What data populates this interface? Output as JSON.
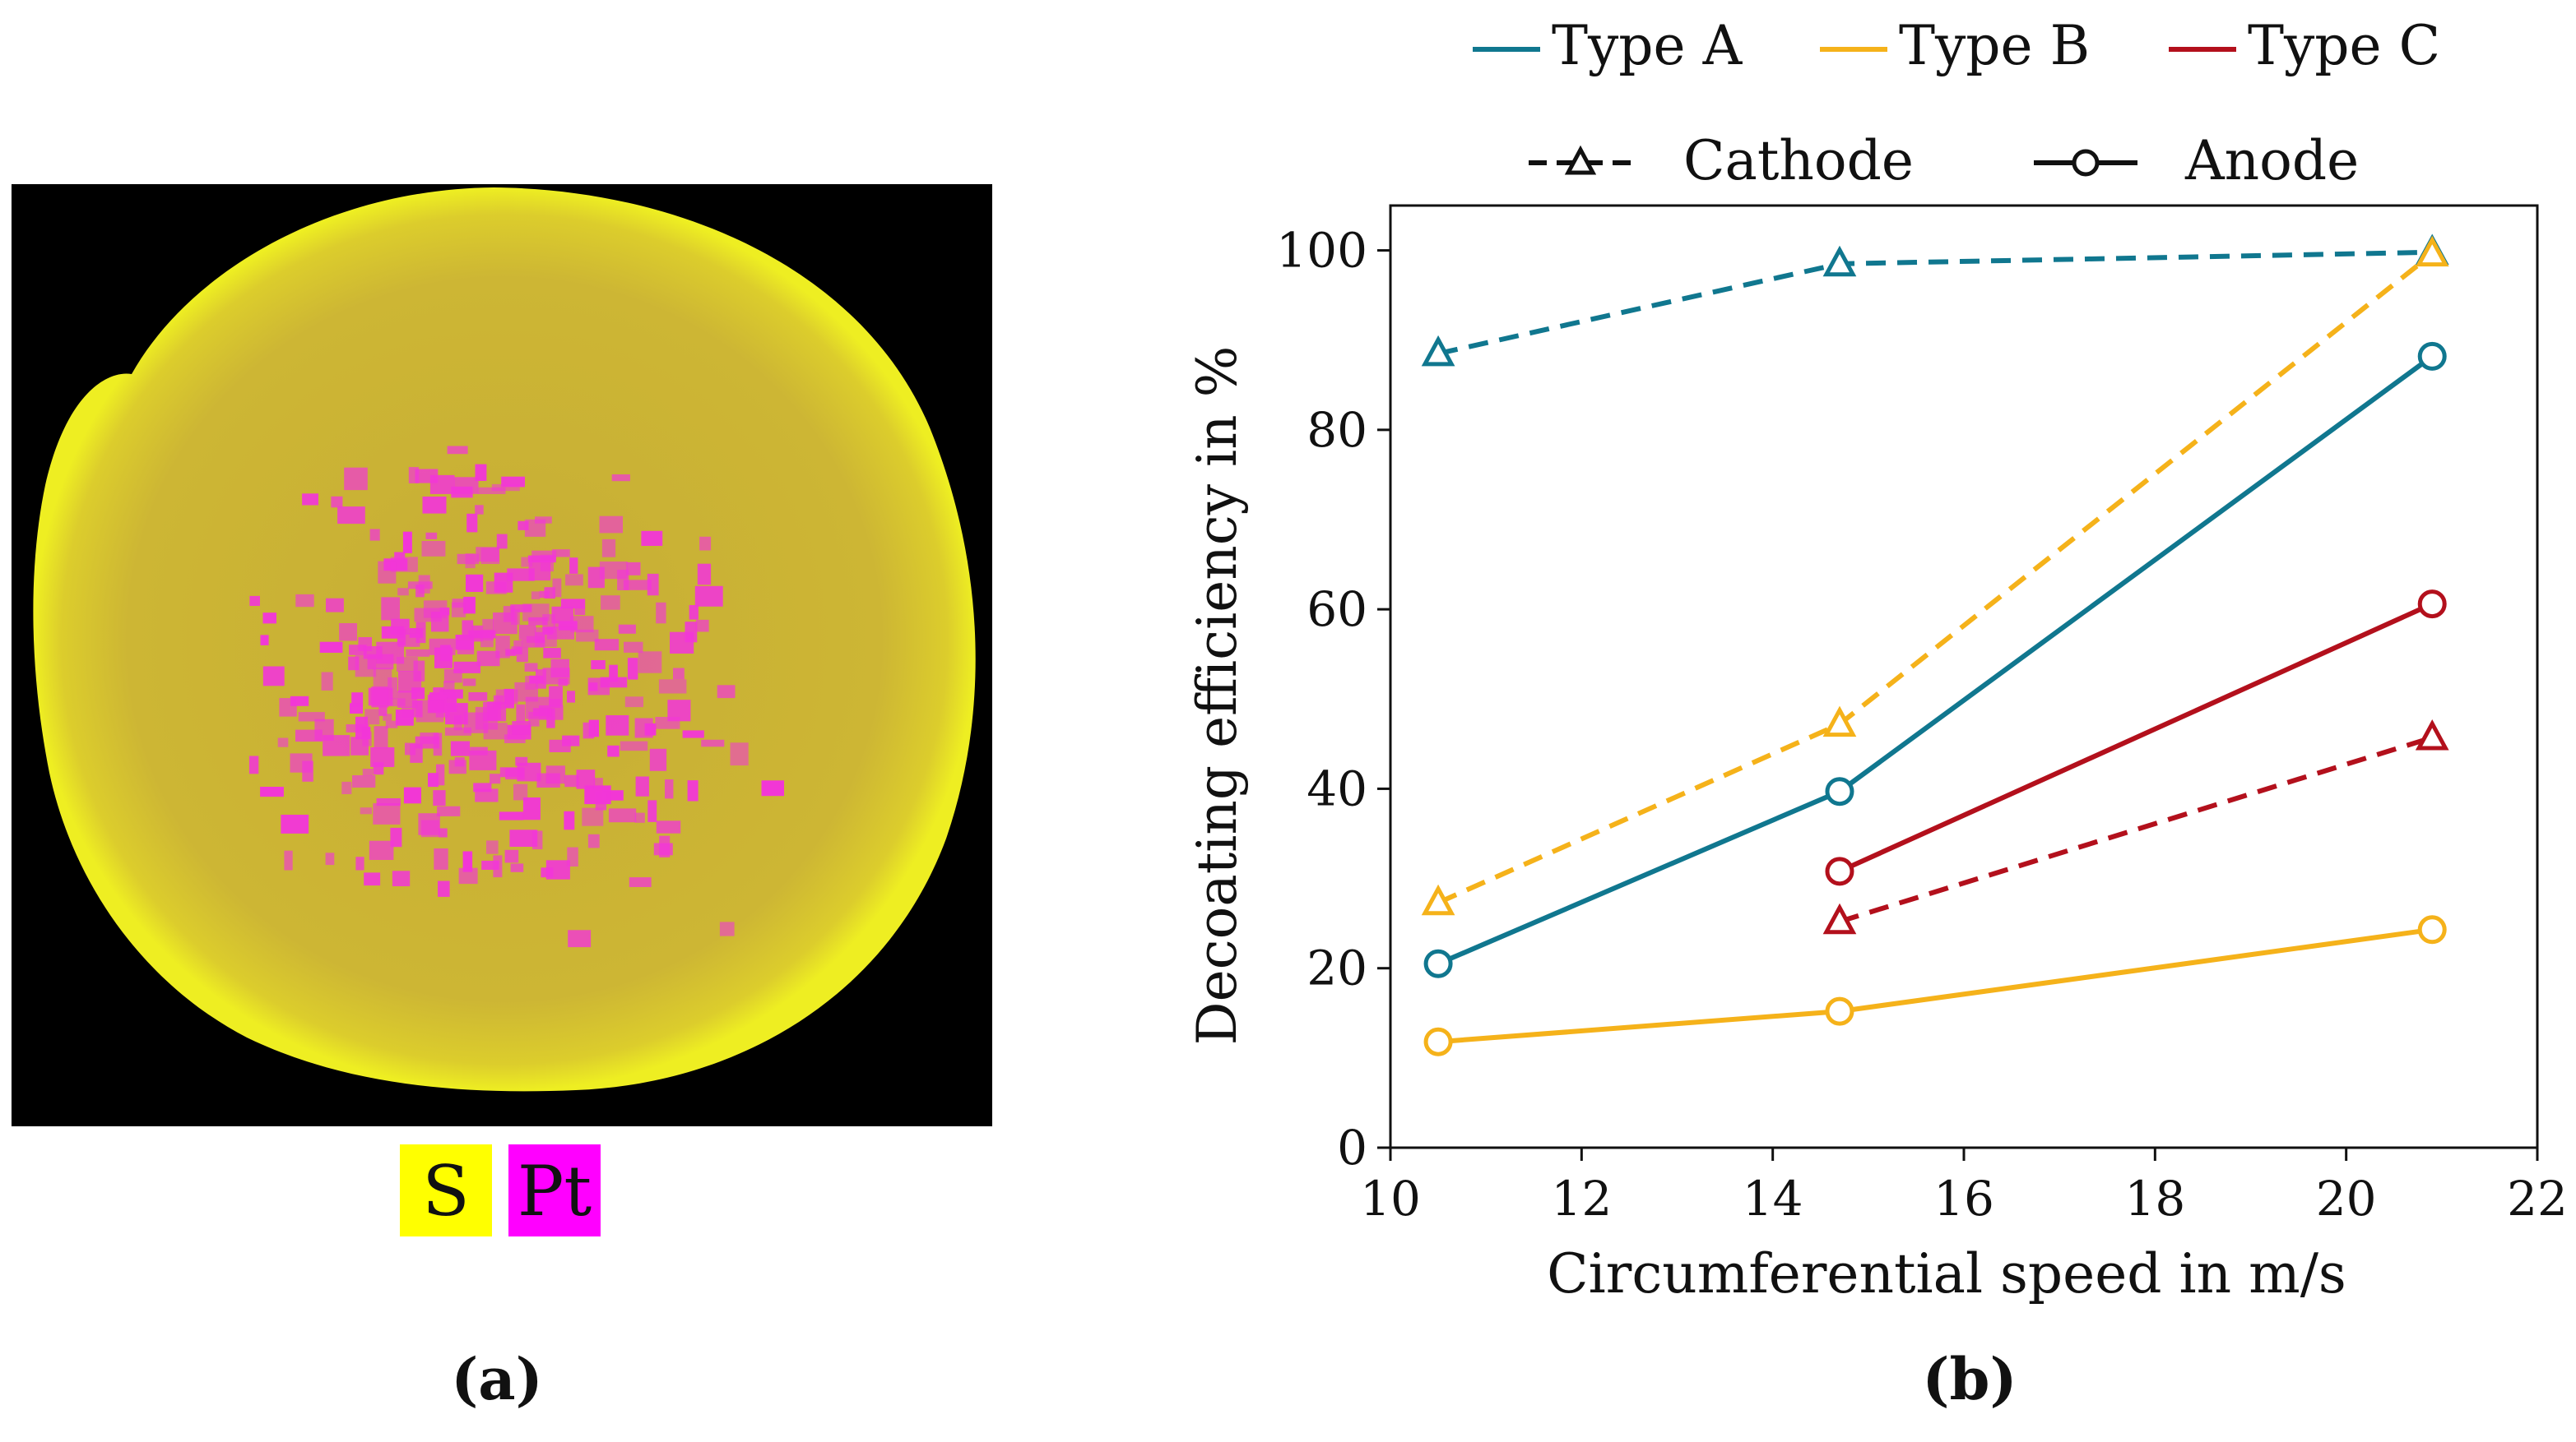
{
  "panel_a": {
    "caption": "(a)",
    "legend": [
      {
        "label": "S",
        "color": "#ffff00"
      },
      {
        "label": "Pt",
        "color": "#ff00ff"
      }
    ],
    "map_colors": {
      "background": "#000000",
      "disk": "#c8b232",
      "rim": "#e6e628",
      "spots": "#f236d8"
    }
  },
  "panel_b": {
    "caption": "(b)",
    "legend_types": [
      {
        "label": "Type A",
        "color": "#10778f"
      },
      {
        "label": "Type B",
        "color": "#f5b21a"
      },
      {
        "label": "Type C",
        "color": "#b3101c"
      }
    ],
    "legend_styles": [
      {
        "label": "Cathode",
        "dash": true,
        "marker": "triangle"
      },
      {
        "label": "Anode",
        "dash": false,
        "marker": "circle"
      }
    ]
  },
  "chart_data": {
    "type": "line",
    "title": "",
    "xlabel": "Circumferential speed in m/s",
    "ylabel": "Decoating efficiency in %",
    "xlim": [
      10,
      22
    ],
    "ylim": [
      0,
      105
    ],
    "xticks": [
      10,
      12,
      14,
      16,
      18,
      20,
      22
    ],
    "yticks": [
      0,
      20,
      40,
      60,
      80,
      100
    ],
    "grid": false,
    "series": [
      {
        "name": "Type A Cathode",
        "color": "#10778f",
        "dash": true,
        "marker": "triangle",
        "x": [
          10.5,
          14.7,
          20.9
        ],
        "values": [
          88.5,
          98.5,
          99.8
        ]
      },
      {
        "name": "Type A Anode",
        "color": "#10778f",
        "dash": false,
        "marker": "circle",
        "x": [
          10.5,
          14.7,
          20.9
        ],
        "values": [
          20.5,
          39.7,
          88.2
        ]
      },
      {
        "name": "Type B Cathode",
        "color": "#f5b21a",
        "dash": true,
        "marker": "triangle",
        "x": [
          10.5,
          14.7,
          20.9
        ],
        "values": [
          27.3,
          47.2,
          99.6
        ]
      },
      {
        "name": "Type B Anode",
        "color": "#f5b21a",
        "dash": false,
        "marker": "circle",
        "x": [
          10.5,
          14.7,
          20.9
        ],
        "values": [
          11.8,
          15.2,
          24.3
        ]
      },
      {
        "name": "Type C Cathode",
        "color": "#b3101c",
        "dash": true,
        "marker": "triangle",
        "x": [
          14.7,
          20.9
        ],
        "values": [
          25.2,
          45.7
        ]
      },
      {
        "name": "Type C Anode",
        "color": "#b3101c",
        "dash": false,
        "marker": "circle",
        "x": [
          14.7,
          20.9
        ],
        "values": [
          30.8,
          60.6
        ]
      }
    ]
  }
}
